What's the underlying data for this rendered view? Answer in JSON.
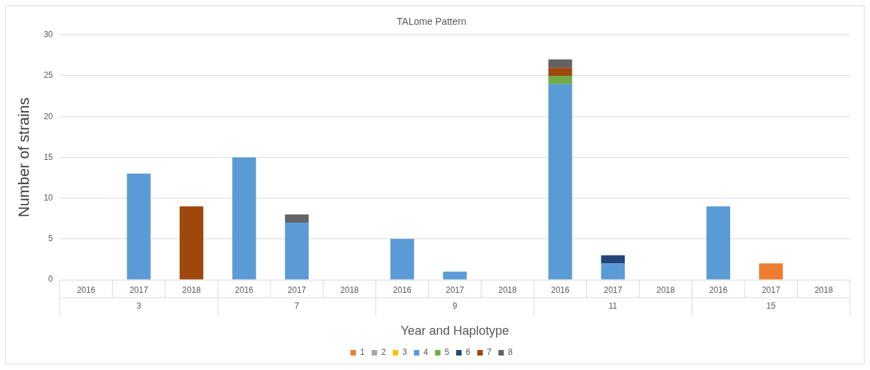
{
  "chart_data": {
    "type": "bar",
    "title": "TALome Pattern",
    "xlabel": "Year and Haplotype",
    "ylabel": "Number of strains",
    "categories": [
      "2016",
      "2017",
      "2018",
      "2016",
      "2017",
      "2018",
      "2016",
      "2017",
      "2018",
      "2016",
      "2017",
      "2018",
      "2016",
      "2017",
      "2018"
    ],
    "annotations": [
      "3",
      "7",
      "9",
      "11",
      "15"
    ],
    "stacked": true,
    "ylim": [
      0,
      30
    ],
    "yticks": [
      0,
      5,
      10,
      15,
      20,
      25,
      30
    ],
    "grid": "y",
    "legend": "bottom",
    "series": [
      {
        "name": "1",
        "color": "#ed7d31",
        "values": [
          null,
          null,
          null,
          null,
          null,
          null,
          null,
          null,
          null,
          null,
          null,
          null,
          null,
          2,
          null
        ]
      },
      {
        "name": "2",
        "color": "#a5a5a5",
        "values": [
          null,
          null,
          null,
          null,
          null,
          null,
          null,
          null,
          null,
          null,
          null,
          null,
          null,
          null,
          null
        ]
      },
      {
        "name": "3",
        "color": "#ffc000",
        "values": [
          null,
          null,
          null,
          null,
          null,
          null,
          null,
          null,
          null,
          null,
          null,
          null,
          null,
          null,
          null
        ]
      },
      {
        "name": "4",
        "color": "#5b9bd5",
        "values": [
          null,
          13,
          null,
          15,
          7,
          null,
          5,
          1,
          null,
          24,
          2,
          null,
          9,
          null,
          null
        ]
      },
      {
        "name": "5",
        "color": "#70ad47",
        "values": [
          null,
          null,
          null,
          null,
          null,
          null,
          null,
          null,
          null,
          1,
          null,
          null,
          null,
          null,
          null
        ]
      },
      {
        "name": "6",
        "color": "#264478",
        "values": [
          null,
          null,
          null,
          null,
          null,
          null,
          null,
          null,
          null,
          null,
          1,
          null,
          null,
          null,
          null
        ]
      },
      {
        "name": "7",
        "color": "#9e480e",
        "values": [
          null,
          null,
          9,
          null,
          null,
          null,
          null,
          null,
          null,
          1,
          null,
          null,
          null,
          null,
          null
        ]
      },
      {
        "name": "8",
        "color": "#636363",
        "values": [
          null,
          null,
          null,
          null,
          1,
          null,
          null,
          null,
          null,
          1,
          null,
          null,
          null,
          null,
          null
        ]
      }
    ]
  }
}
